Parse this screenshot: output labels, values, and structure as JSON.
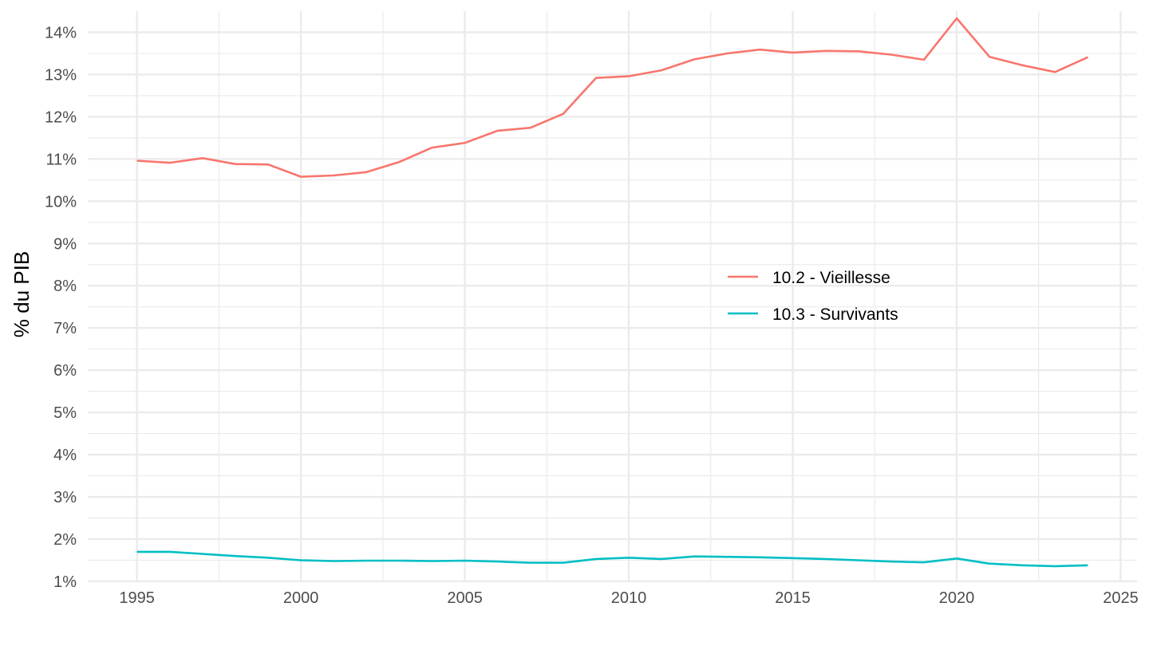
{
  "chart_data": {
    "type": "line",
    "title": "",
    "xlabel": "",
    "ylabel": "% du PIB",
    "x": [
      1995,
      1996,
      1997,
      1998,
      1999,
      2000,
      2001,
      2002,
      2003,
      2004,
      2005,
      2006,
      2007,
      2008,
      2009,
      2010,
      2011,
      2012,
      2013,
      2014,
      2015,
      2016,
      2017,
      2018,
      2019,
      2020,
      2021,
      2022,
      2023,
      2024
    ],
    "series": [
      {
        "name": "10.2 - Vieillesse",
        "color": "#F8766D",
        "values": [
          10.96,
          10.91,
          11.02,
          10.88,
          10.87,
          10.58,
          10.61,
          10.69,
          10.93,
          11.27,
          11.38,
          11.67,
          11.74,
          12.07,
          12.92,
          12.96,
          13.1,
          13.36,
          13.5,
          13.59,
          13.52,
          13.56,
          13.55,
          13.47,
          13.35,
          14.33,
          13.42,
          13.22,
          13.06,
          13.41
        ]
      },
      {
        "name": "10.3 - Survivants",
        "color": "#00BFC4",
        "values": [
          1.7,
          1.7,
          1.65,
          1.6,
          1.56,
          1.5,
          1.48,
          1.49,
          1.49,
          1.48,
          1.49,
          1.47,
          1.44,
          1.44,
          1.53,
          1.56,
          1.53,
          1.59,
          1.58,
          1.57,
          1.55,
          1.53,
          1.5,
          1.47,
          1.45,
          1.54,
          1.42,
          1.38,
          1.36,
          1.38
        ]
      }
    ],
    "xlim": [
      1993.5,
      2025.5
    ],
    "ylim": [
      0.98,
      14.5
    ],
    "x_ticks": [
      1995,
      2000,
      2005,
      2010,
      2015,
      2020,
      2025
    ],
    "x_tick_labels": [
      "1995",
      "2000",
      "2005",
      "2010",
      "2015",
      "2020",
      "2025"
    ],
    "y_ticks": [
      1,
      2,
      3,
      4,
      5,
      6,
      7,
      8,
      9,
      10,
      11,
      12,
      13,
      14
    ],
    "y_tick_labels": [
      "1%",
      "2%",
      "3%",
      "4%",
      "5%",
      "6%",
      "7%",
      "8%",
      "9%",
      "10%",
      "11%",
      "12%",
      "13%",
      "14%"
    ],
    "grid": true,
    "legend_position": "inside-right",
    "grid_color": "#ebebeb"
  }
}
